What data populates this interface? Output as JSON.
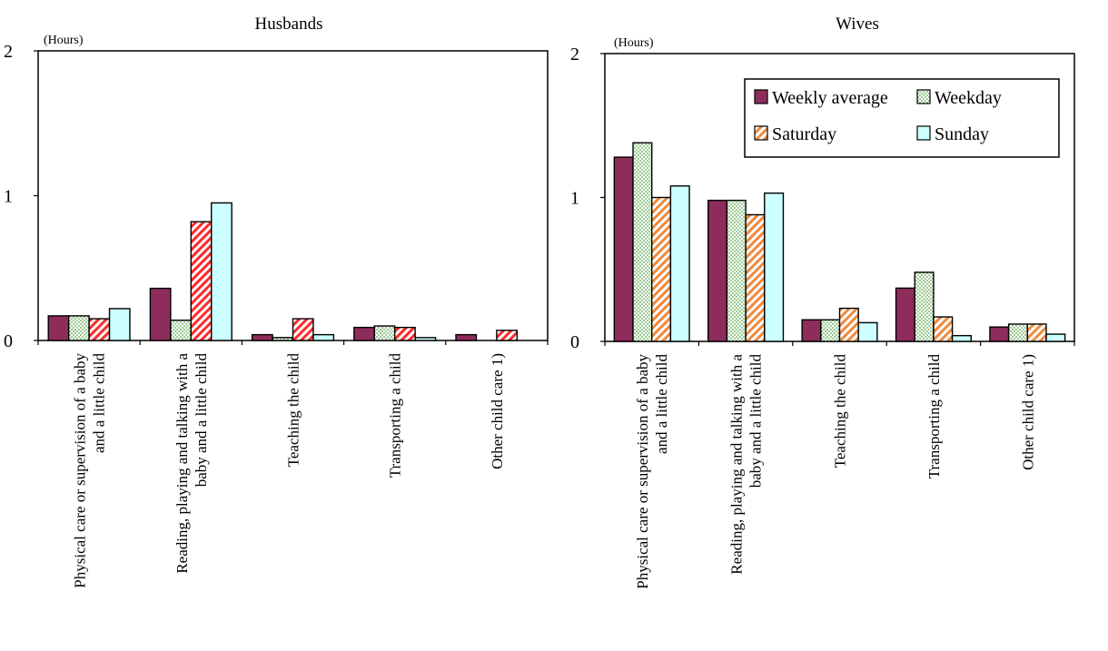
{
  "colors": {
    "weekly_average": "#8e2c5c",
    "weekday_dots": "#5aa64a",
    "saturday_stripe": "#e8473a",
    "saturday_stripe_husbands": "#ff2a2a",
    "saturday_stripe_wives": "#f08a3a",
    "sunday": "#ccffff",
    "axis": "#000000"
  },
  "legend": {
    "items": [
      {
        "key": "weekly_average",
        "label": "Weekly average"
      },
      {
        "key": "weekday",
        "label": "Weekday"
      },
      {
        "key": "saturday",
        "label": "Saturday"
      },
      {
        "key": "sunday",
        "label": "Sunday"
      }
    ]
  },
  "chart_data": [
    {
      "type": "bar",
      "title": "Husbands",
      "ylabel": "(Hours)",
      "ylim": [
        0,
        2
      ],
      "yticks": [
        "0",
        "1",
        "2"
      ],
      "categories": [
        [
          "Physical care or supervision of a baby",
          "and a little child"
        ],
        [
          "Reading, playing and talking with a",
          "baby and a little child"
        ],
        [
          "Teaching the child"
        ],
        [
          "Transporting a child"
        ],
        [
          "Other child care 1)"
        ]
      ],
      "series": [
        {
          "name": "Weekly average",
          "values": [
            0.17,
            0.36,
            0.04,
            0.09,
            0.04
          ]
        },
        {
          "name": "Weekday",
          "values": [
            0.17,
            0.14,
            0.02,
            0.1,
            0.0
          ]
        },
        {
          "name": "Saturday",
          "values": [
            0.15,
            0.82,
            0.15,
            0.09,
            0.07
          ]
        },
        {
          "name": "Sunday",
          "values": [
            0.22,
            0.95,
            0.04,
            0.02,
            0.0
          ]
        }
      ]
    },
    {
      "type": "bar",
      "title": "Wives",
      "ylabel": "(Hours)",
      "ylim": [
        0,
        2
      ],
      "yticks": [
        "0",
        "1",
        "2"
      ],
      "categories": [
        [
          "Physical care or supervision of a baby",
          "and a little child"
        ],
        [
          "Reading, playing and talking with a",
          "baby and a little child"
        ],
        [
          "Teaching the child"
        ],
        [
          "Transporting a child"
        ],
        [
          "Other child care 1)"
        ]
      ],
      "series": [
        {
          "name": "Weekly average",
          "values": [
            1.28,
            0.98,
            0.15,
            0.37,
            0.1
          ]
        },
        {
          "name": "Weekday",
          "values": [
            1.38,
            0.98,
            0.15,
            0.48,
            0.12
          ]
        },
        {
          "name": "Saturday",
          "values": [
            1.0,
            0.88,
            0.23,
            0.17,
            0.12
          ]
        },
        {
          "name": "Sunday",
          "values": [
            1.08,
            1.03,
            0.13,
            0.04,
            0.05
          ]
        }
      ]
    }
  ]
}
